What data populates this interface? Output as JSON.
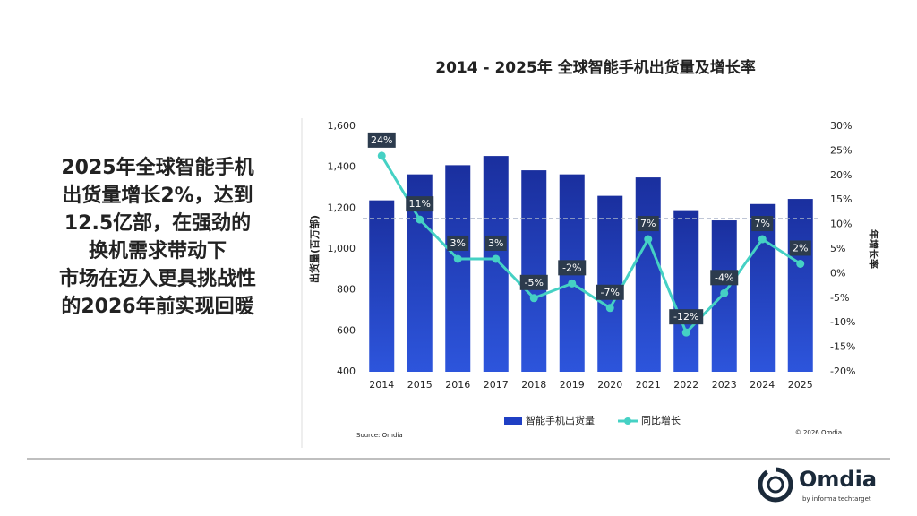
{
  "slide": {
    "headline_lines": [
      "2025年全球智能手机",
      "出货量增长2%，达到",
      "12.5亿部，在强劲的",
      "换机需求带动下",
      "市场在迈入更具挑战性",
      "的2026年前实现回暖"
    ],
    "logo": "Omdia",
    "logo_sub": "by informa techtarget"
  },
  "chart_data": {
    "type": "bar_line",
    "title": "2014 - 2025年 全球智能手机出货量及增长率",
    "ylabel": "出货量(百万部)",
    "y2label": "年增长率",
    "source": "Source: Omdia",
    "copyright": "© 2026 Omdia",
    "categories": [
      "2014",
      "2015",
      "2016",
      "2017",
      "2018",
      "2019",
      "2020",
      "2021",
      "2022",
      "2023",
      "2024",
      "2025"
    ],
    "series": [
      {
        "name": "智能手机出货量",
        "color": "#1f3fc4",
        "values": [
          1238,
          1365,
          1410,
          1455,
          1385,
          1365,
          1260,
          1350,
          1190,
          1140,
          1220,
          1245
        ]
      },
      {
        "name": "同比增长",
        "color": "#45d1c4",
        "axis": "y2",
        "values": [
          24,
          11,
          3,
          3,
          -5,
          -2,
          -7,
          7,
          -12,
          -4,
          7,
          2
        ],
        "value_labels": [
          "24%",
          "11%",
          "3%",
          "3%",
          "-5%",
          "-2%",
          "-7%",
          "7%",
          "-12%",
          "-4%",
          "7%",
          "2%"
        ]
      }
    ],
    "reference_line": 1150,
    "ylim": [
      400,
      1600
    ],
    "yticks": [
      400,
      600,
      800,
      {
        "value": 1000,
        "label": "1,000"
      },
      {
        "value": 1200,
        "label": "1,200"
      },
      {
        "value": 1400,
        "label": "1,400"
      },
      {
        "value": 1600,
        "label": "1,600"
      }
    ],
    "y2lim": [
      -20,
      30
    ],
    "y2ticks": [
      {
        "value": -20,
        "label": "-20%"
      },
      {
        "value": -15,
        "label": "-15%"
      },
      {
        "value": -10,
        "label": "-10%"
      },
      {
        "value": -5,
        "label": "-5%"
      },
      {
        "value": 0,
        "label": "0%"
      },
      {
        "value": 5,
        "label": "5%"
      },
      {
        "value": 10,
        "label": "10%"
      },
      {
        "value": 15,
        "label": "15%"
      },
      {
        "value": 20,
        "label": "20%"
      },
      {
        "value": 25,
        "label": "25%"
      },
      {
        "value": 30,
        "label": "30%"
      }
    ],
    "legend": "bottom"
  }
}
